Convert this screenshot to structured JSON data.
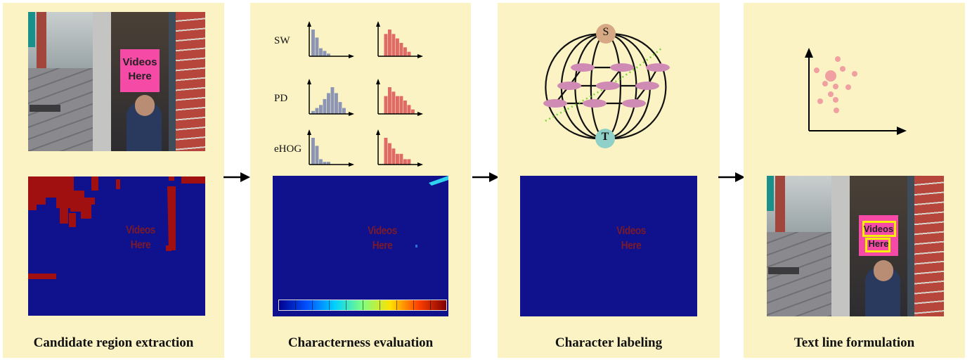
{
  "stages": [
    {
      "caption": "Candidate region extraction"
    },
    {
      "caption": "Characterness evaluation"
    },
    {
      "caption": "Character labeling"
    },
    {
      "caption": "Text line formulation"
    }
  ],
  "sign_text": {
    "line1": "Videos",
    "line2": "Here"
  },
  "map_text": {
    "line1": "Videos",
    "line2": "Here"
  },
  "histograms": [
    {
      "label": "SW",
      "gray": [
        10,
        7,
        3,
        2,
        1
      ],
      "red": [
        0,
        5,
        6,
        5,
        4,
        3,
        2,
        1
      ]
    },
    {
      "label": "PD",
      "gray": [
        1,
        2,
        3,
        5,
        7,
        9,
        7,
        4,
        2
      ],
      "red": [
        0,
        4,
        6,
        5,
        4,
        4,
        3,
        2,
        1
      ]
    },
    {
      "label": "eHOG",
      "gray": [
        10,
        7,
        2,
        1,
        1
      ],
      "red": [
        0,
        5,
        4,
        3,
        2,
        2,
        1,
        1
      ]
    }
  ],
  "graph": {
    "source_label": "S",
    "sink_label": "T"
  },
  "colors": {
    "panel_bg": "#fbf3c4",
    "map_bg": "#10118c",
    "hist_gray": "#8c96b4",
    "hist_red": "#e06a66",
    "node_pink": "#d08bb5",
    "node_s": "#d6a884",
    "node_t": "#8fd0c8",
    "cluster": "#f0a0a0",
    "sign_pink": "#f54aa5",
    "box_yellow": "#f5f000"
  }
}
